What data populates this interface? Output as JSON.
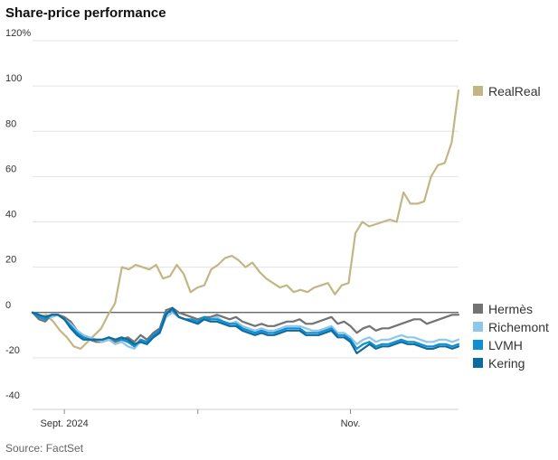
{
  "chart_data": {
    "type": "line",
    "title": "Share-price performance",
    "source": "Source: FactSet",
    "y_ticks": [
      {
        "value": 120,
        "label": "120%"
      },
      {
        "value": 100,
        "label": "100"
      },
      {
        "value": 80,
        "label": "80"
      },
      {
        "value": 60,
        "label": "60"
      },
      {
        "value": 40,
        "label": "40"
      },
      {
        "value": 20,
        "label": "20"
      },
      {
        "value": 0,
        "label": "0"
      },
      {
        "value": -20,
        "label": "-20"
      },
      {
        "value": -40,
        "label": "-40"
      }
    ],
    "ylim": [
      -40,
      120
    ],
    "xlim": [
      0,
      67
    ],
    "x_ticks": [
      {
        "x": 5,
        "label": "Sept. 2024"
      },
      {
        "x": 26,
        "label": ""
      },
      {
        "x": 50,
        "label": "Nov."
      }
    ],
    "grid": true,
    "legend_placement": "right",
    "series": [
      {
        "name": "RealReal",
        "color": "#c2b784",
        "values": [
          0,
          -2,
          -1,
          -4,
          -8,
          -11,
          -15,
          -16,
          -13,
          -10,
          -7,
          -1,
          4,
          20,
          19,
          21,
          20,
          19,
          21,
          15,
          16,
          21,
          17,
          9,
          11,
          12,
          19,
          21,
          24,
          25,
          23,
          20,
          22,
          18,
          15,
          13,
          11,
          12,
          9,
          10,
          9,
          11,
          12,
          13,
          8,
          12,
          13,
          35,
          40,
          38,
          39,
          40,
          41,
          40,
          53,
          48,
          48,
          49,
          60,
          65,
          66,
          75,
          98
        ]
      },
      {
        "name": "Hermès",
        "color": "#737373",
        "values": [
          0,
          -3,
          -4,
          -1,
          -1,
          -2,
          -4,
          -8,
          -10,
          -12,
          -13,
          -13,
          -12,
          -13,
          -12,
          -11,
          -13,
          -10,
          -12,
          -9,
          -7,
          1,
          2,
          0,
          -1,
          -2,
          -3,
          -2,
          -2,
          -1,
          -2,
          -3,
          -2,
          -4,
          -5,
          -6,
          -5,
          -6,
          -6,
          -5,
          -4,
          -4,
          -3,
          -5,
          -5,
          -4,
          -3,
          -2,
          -5,
          -4,
          -6,
          -9,
          -7,
          -6,
          -8,
          -7,
          -7,
          -6,
          -5,
          -4,
          -3,
          -3,
          -5,
          -4,
          -3,
          -2,
          -1,
          -1
        ]
      },
      {
        "name": "Richemont",
        "color": "#8ec7ea",
        "values": [
          0,
          -1,
          -2,
          -2,
          -1,
          -3,
          -5,
          -8,
          -10,
          -11,
          -12,
          -13,
          -12,
          -14,
          -13,
          -15,
          -16,
          -13,
          -14,
          -11,
          -9,
          -2,
          0,
          -2,
          -3,
          -4,
          -4,
          -3,
          -3,
          -2,
          -4,
          -5,
          -4,
          -6,
          -7,
          -8,
          -7,
          -8,
          -8,
          -7,
          -6,
          -6,
          -6,
          -7,
          -8,
          -8,
          -7,
          -6,
          -9,
          -9,
          -11,
          -14,
          -12,
          -11,
          -13,
          -12,
          -12,
          -11,
          -10,
          -11,
          -11,
          -12,
          -13,
          -13,
          -12,
          -12,
          -13,
          -12
        ]
      },
      {
        "name": "LVMH",
        "color": "#0e8fd4",
        "values": [
          0,
          -2,
          -3,
          -1,
          -1,
          -3,
          -6,
          -9,
          -11,
          -12,
          -12,
          -12,
          -11,
          -12,
          -12,
          -13,
          -15,
          -12,
          -13,
          -10,
          -8,
          0,
          1,
          -2,
          -3,
          -3,
          -4,
          -2,
          -3,
          -3,
          -4,
          -5,
          -5,
          -7,
          -8,
          -9,
          -8,
          -9,
          -9,
          -8,
          -7,
          -7,
          -7,
          -9,
          -9,
          -9,
          -8,
          -7,
          -10,
          -10,
          -12,
          -16,
          -14,
          -13,
          -15,
          -14,
          -14,
          -13,
          -12,
          -13,
          -13,
          -14,
          -15,
          -15,
          -14,
          -14,
          -15,
          -14
        ]
      },
      {
        "name": "Kering",
        "color": "#0d6c9e",
        "values": [
          0,
          -1,
          -2,
          -1,
          -1,
          -3,
          -7,
          -10,
          -12,
          -12,
          -12,
          -12,
          -11,
          -12,
          -11,
          -12,
          -14,
          -13,
          -14,
          -11,
          -9,
          -1,
          2,
          -2,
          -3,
          -4,
          -5,
          -3,
          -4,
          -4,
          -5,
          -6,
          -6,
          -8,
          -9,
          -10,
          -9,
          -10,
          -10,
          -9,
          -8,
          -8,
          -8,
          -10,
          -10,
          -10,
          -9,
          -8,
          -11,
          -11,
          -13,
          -18,
          -16,
          -14,
          -16,
          -15,
          -15,
          -14,
          -13,
          -14,
          -14,
          -15,
          -16,
          -16,
          -15,
          -15,
          -16,
          -15
        ]
      }
    ]
  },
  "legend": [
    {
      "label": "RealReal",
      "color": "#c2b784"
    },
    {
      "label": "Hermès",
      "color": "#737373"
    },
    {
      "label": "Richemont",
      "color": "#8ec7ea"
    },
    {
      "label": "LVMH",
      "color": "#0e8fd4"
    },
    {
      "label": "Kering",
      "color": "#0d6c9e"
    }
  ]
}
